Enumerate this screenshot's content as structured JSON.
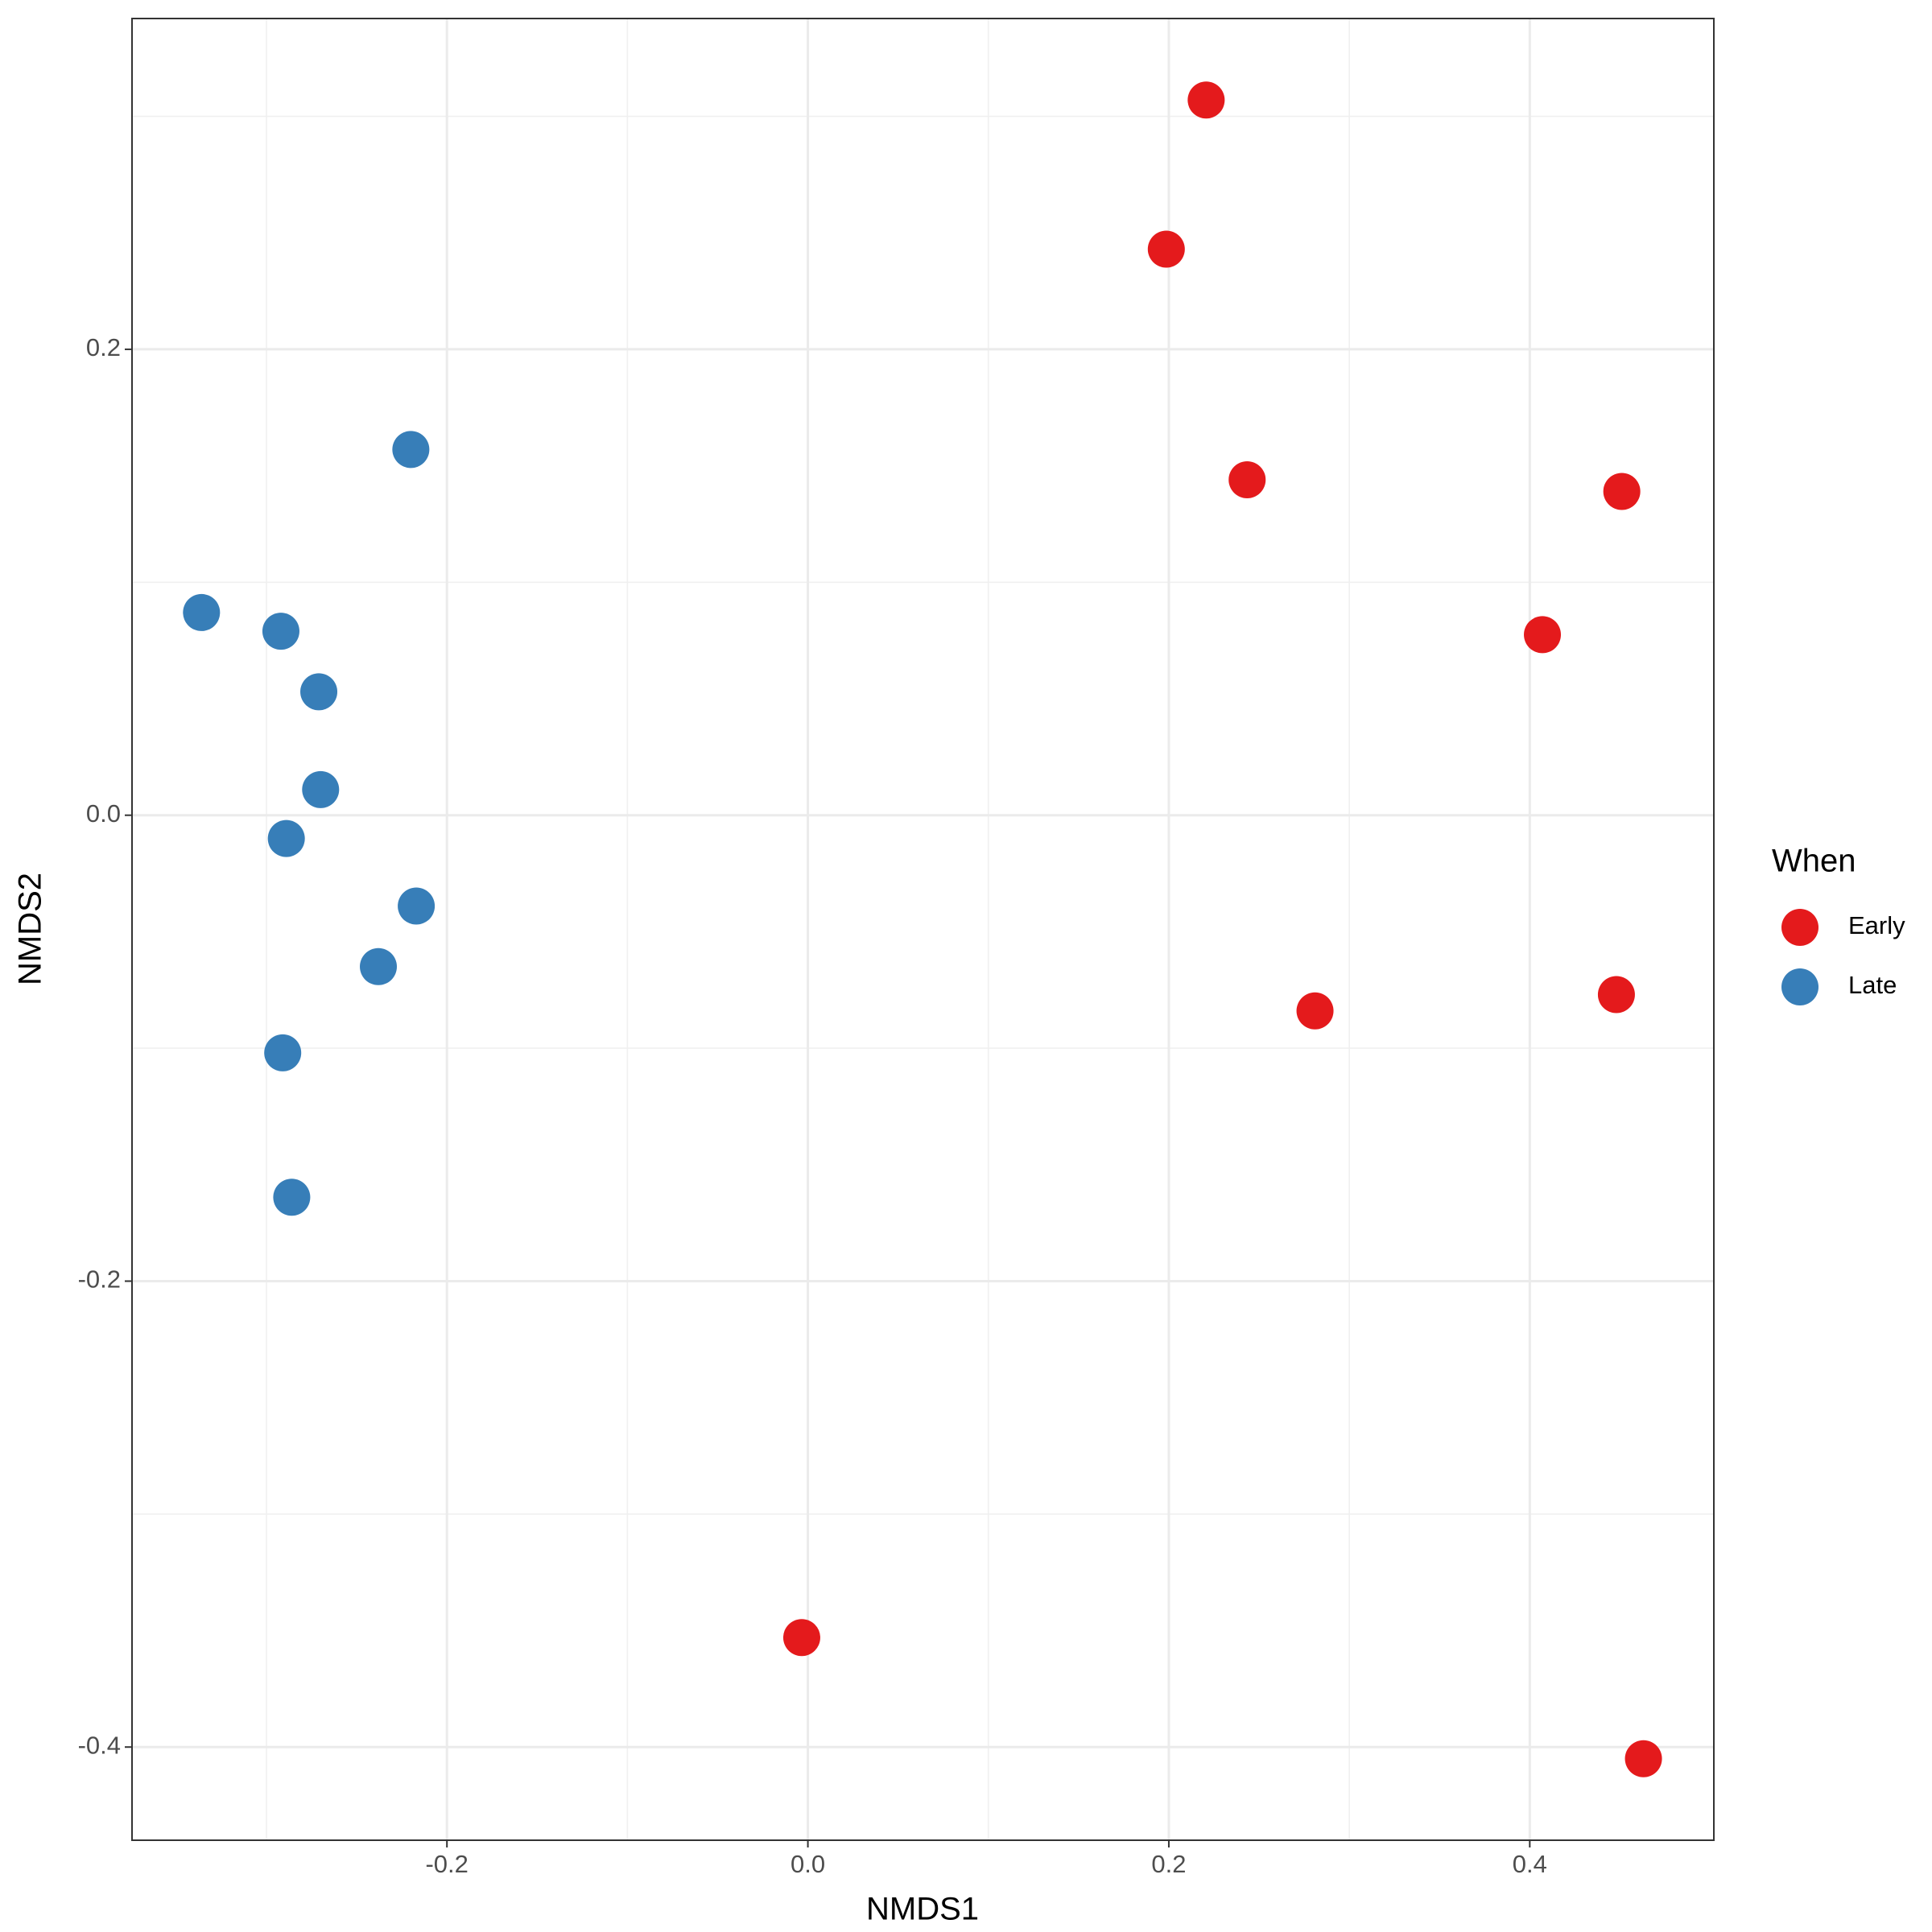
{
  "chart_data": {
    "type": "scatter",
    "x_label": "NMDS1",
    "y_label": "NMDS2",
    "legend_title": "When",
    "legend": "right",
    "grid": true,
    "xlim": [
      -0.3745,
      0.502
    ],
    "ylim": [
      -0.44,
      0.342
    ],
    "xticks": [
      -0.2,
      {
        "value": 0,
        "label": "0.0"
      },
      0.2,
      0.4
    ],
    "yticks": [
      -0.4,
      -0.2,
      {
        "value": 0,
        "label": "0.0"
      },
      0.2
    ],
    "xminor": [
      -0.3,
      -0.1,
      0.1,
      0.3
    ],
    "yminor": [
      -0.3,
      -0.1,
      0.1,
      0.3
    ],
    "series": [
      {
        "name": "Early",
        "color": "#e41a1c",
        "x": [
          0.2207,
          0.1986,
          0.2434,
          0.451,
          0.407,
          0.281,
          0.448,
          -0.0034,
          0.463
        ],
        "y": [
          0.307,
          0.243,
          0.144,
          0.139,
          0.0775,
          -0.084,
          -0.077,
          -0.353,
          -0.405
        ]
      },
      {
        "name": "Late",
        "color": "#377eb8",
        "x": [
          -0.22,
          -0.336,
          -0.292,
          -0.271,
          -0.27,
          -0.289,
          -0.217,
          -0.238,
          -0.291,
          -0.286
        ],
        "y": [
          0.157,
          0.087,
          0.079,
          0.053,
          0.011,
          -0.01,
          -0.039,
          -0.065,
          -0.102,
          -0.164
        ]
      }
    ]
  }
}
